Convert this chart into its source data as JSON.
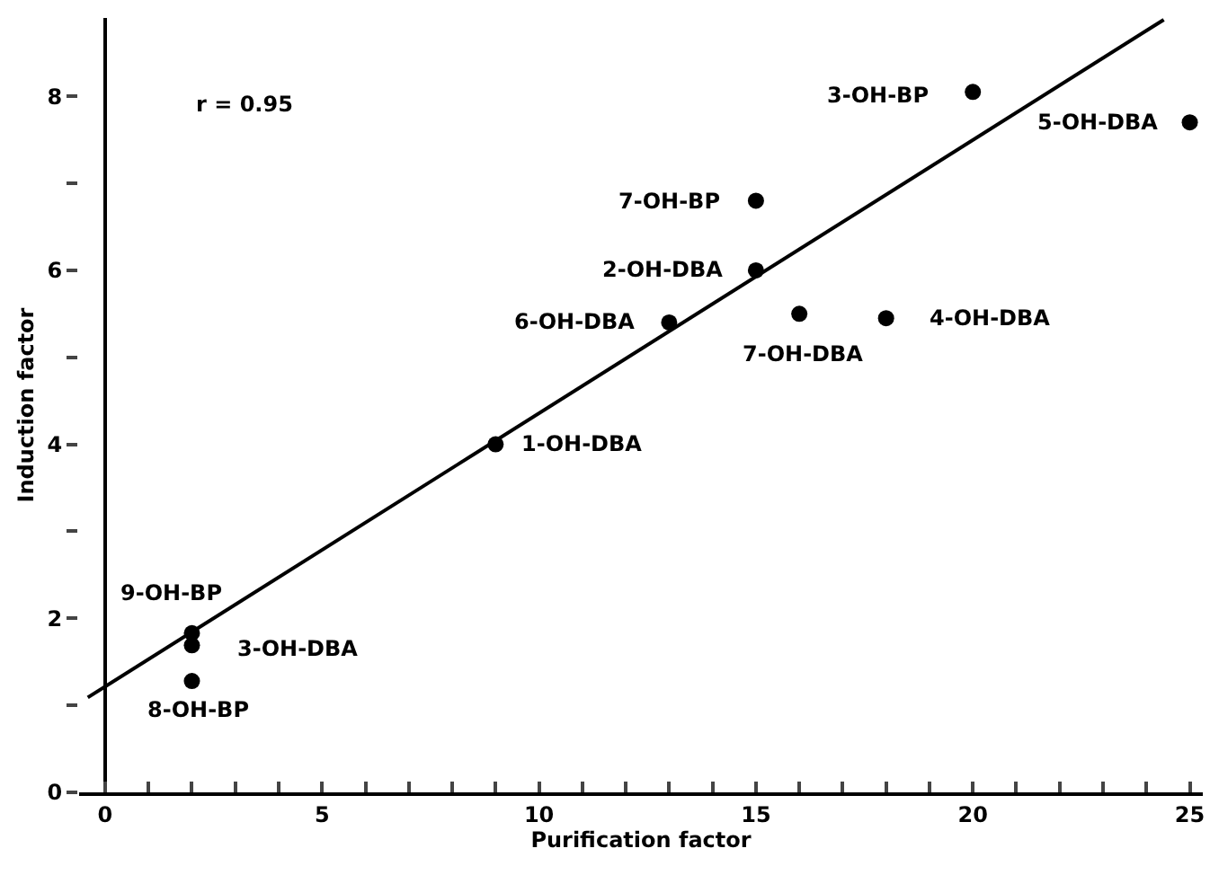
{
  "chart_data": {
    "type": "scatter",
    "xlabel": "Purification factor",
    "ylabel": "Induction factor",
    "xlim": [
      -0.6,
      25.3
    ],
    "ylim": [
      0,
      8.9
    ],
    "xticks": [
      0,
      {
        "value": 1,
        "label": null
      },
      {
        "value": 2,
        "label": null
      },
      {
        "value": 3,
        "label": null
      },
      {
        "value": 4,
        "label": null
      },
      5,
      {
        "value": 6,
        "label": null
      },
      {
        "value": 7,
        "label": null
      },
      {
        "value": 8,
        "label": null
      },
      {
        "value": 9,
        "label": null
      },
      10,
      {
        "value": 11,
        "label": null
      },
      {
        "value": 12,
        "label": null
      },
      {
        "value": 13,
        "label": null
      },
      {
        "value": 14,
        "label": null
      },
      15,
      {
        "value": 16,
        "label": null
      },
      {
        "value": 17,
        "label": null
      },
      {
        "value": 18,
        "label": null
      },
      {
        "value": 19,
        "label": null
      },
      20,
      {
        "value": 21,
        "label": null
      },
      {
        "value": 22,
        "label": null
      },
      {
        "value": 23,
        "label": null
      },
      {
        "value": 24,
        "label": null
      },
      25
    ],
    "yticks": [
      0,
      {
        "value": 1,
        "label": null
      },
      2,
      {
        "value": 3,
        "label": null
      },
      4,
      {
        "value": 5,
        "label": null
      },
      6,
      {
        "value": 7,
        "label": null
      },
      8
    ],
    "series": [
      {
        "marker": "circle",
        "color": "#000000",
        "x": [
          20,
          25,
          15,
          15,
          13,
          16,
          18,
          9,
          2,
          2,
          2
        ],
        "values": [
          8.05,
          7.7,
          6.8,
          6.0,
          5.4,
          5.5,
          5.45,
          4.0,
          1.83,
          1.69,
          1.28
        ]
      },
      {
        "type": "line",
        "marker": "none",
        "color": "#000000",
        "x": [
          -0.4,
          24.4
        ],
        "values": [
          1.09,
          8.88
        ]
      }
    ],
    "annotations": [
      "r = 0.95",
      {
        "text": "3-OH-BP",
        "x": 20,
        "y": 8.05
      },
      {
        "text": "5-OH-DBA",
        "x": 25,
        "y": 7.7
      },
      {
        "text": "7-OH-BP",
        "x": 15,
        "y": 6.8
      },
      {
        "text": "2-OH-DBA",
        "x": 15,
        "y": 6.0
      },
      {
        "text": "6-OH-DBA",
        "x": 13,
        "y": 5.4
      },
      {
        "text": "7-OH-DBA",
        "x": 16,
        "y": 5.5
      },
      {
        "text": "4-OH-DBA",
        "x": 18,
        "y": 5.45
      },
      {
        "text": "1-OH-DBA",
        "x": 9,
        "y": 4.0
      },
      {
        "text": "9-OH-BP",
        "x": 2,
        "y": 1.83
      },
      {
        "text": "3-OH-DBA",
        "x": 2,
        "y": 1.69
      },
      {
        "text": "8-OH-BP",
        "x": 2,
        "y": 1.28
      }
    ]
  }
}
